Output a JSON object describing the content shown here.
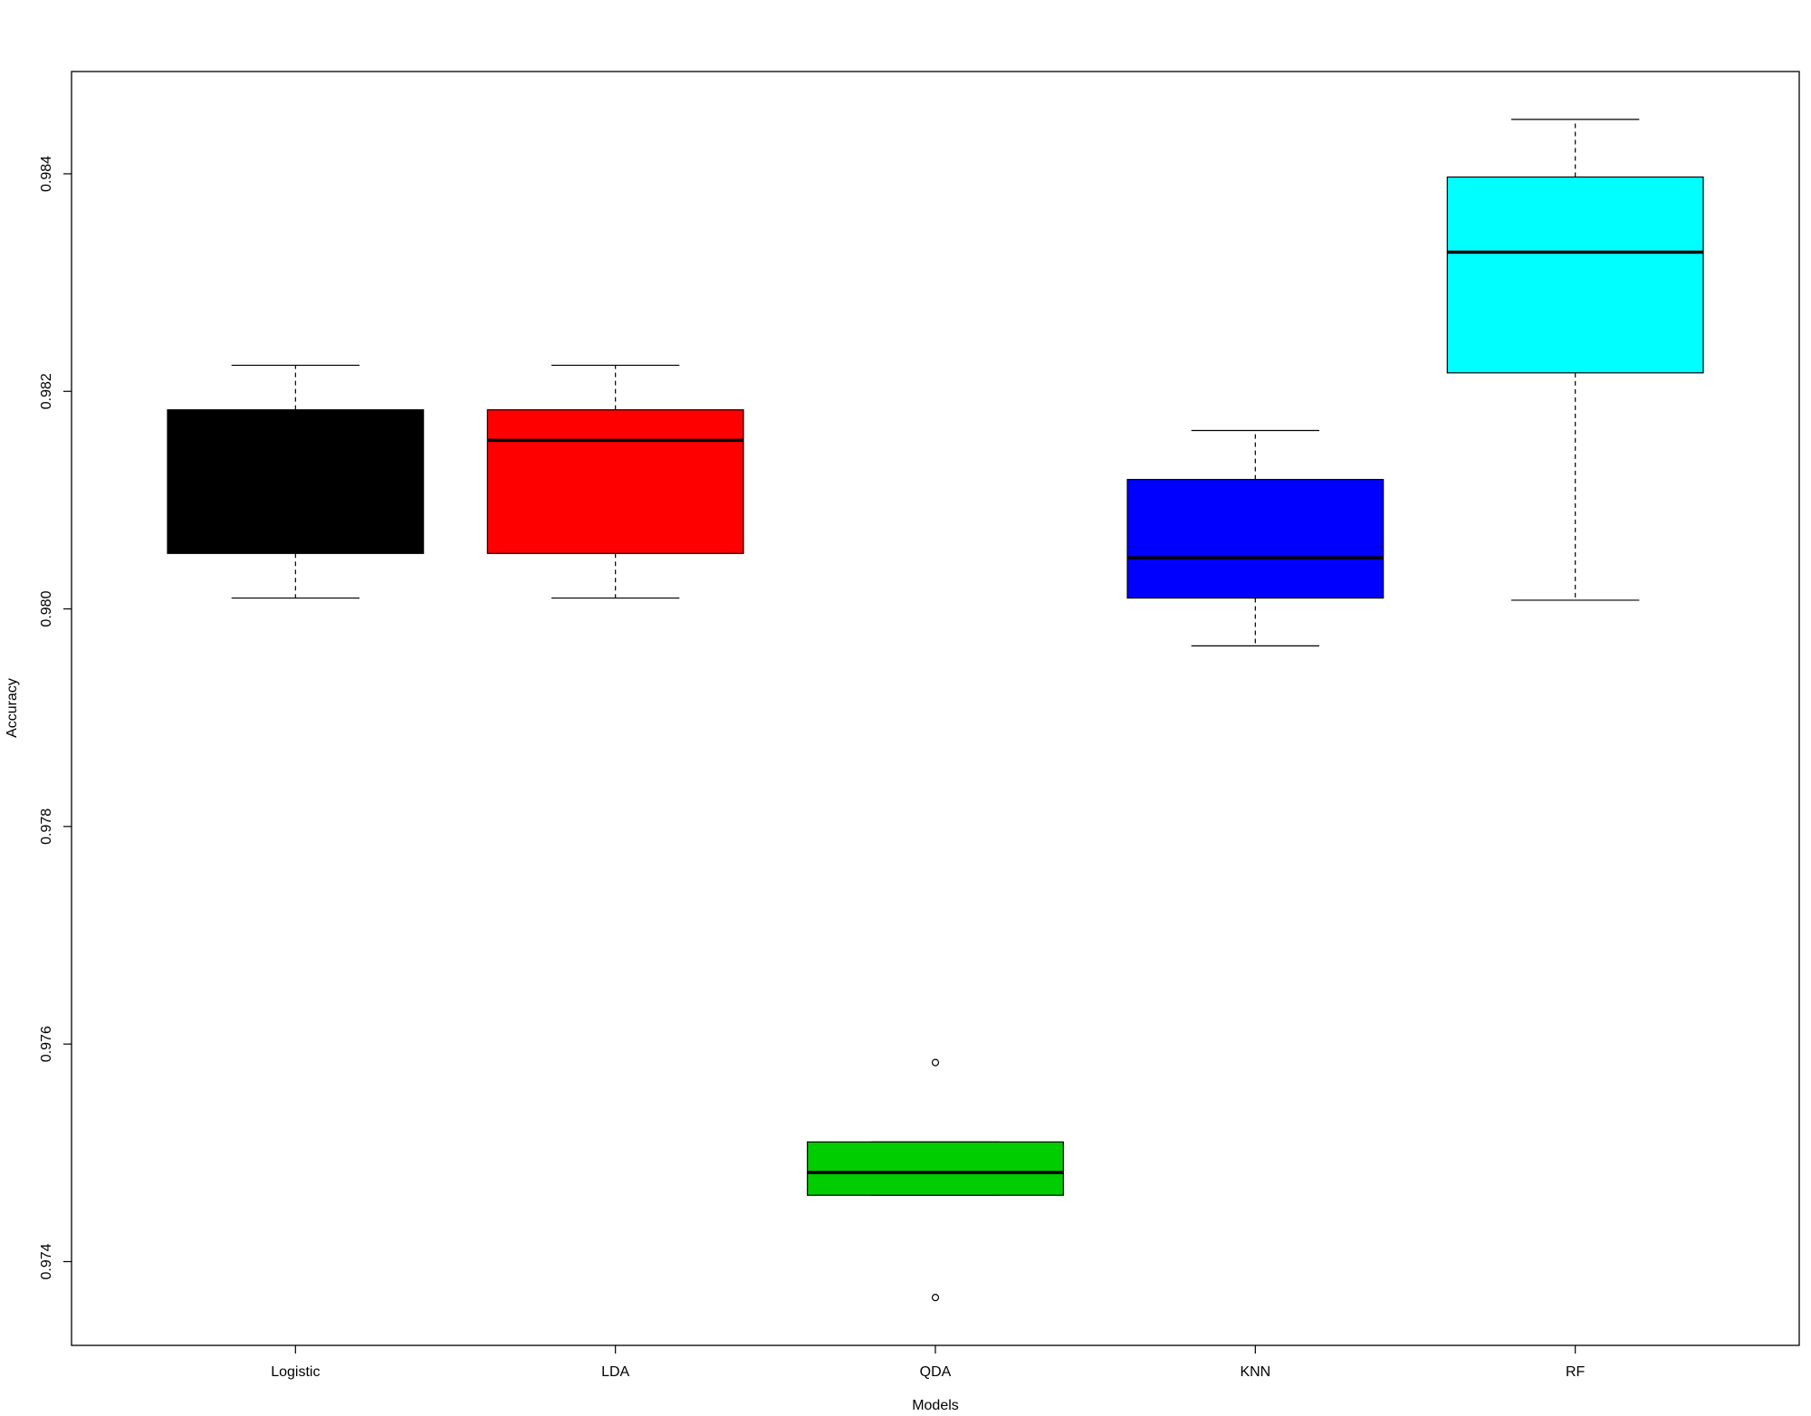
{
  "chart_data": {
    "type": "boxplot",
    "x_label": "Models",
    "y_label": "Accuracy",
    "categories": [
      "Logistic",
      "LDA",
      "QDA",
      "KNN",
      "RF"
    ],
    "colors": [
      "#000000",
      "#ff0000",
      "#00cd00",
      "#0000ff",
      "#00ffff"
    ],
    "boxes": [
      {
        "min": 0.9801,
        "q1": 0.98051,
        "median": 0.98155,
        "q3": 0.98183,
        "max": 0.98224,
        "outliers": []
      },
      {
        "min": 0.9801,
        "q1": 0.98051,
        "median": 0.98155,
        "q3": 0.98183,
        "max": 0.98224,
        "outliers": []
      },
      {
        "min": 0.97461,
        "q1": 0.97461,
        "median": 0.97482,
        "q3": 0.9751,
        "max": 0.9751,
        "outliers": [
          0.97583,
          0.97367
        ]
      },
      {
        "min": 0.97966,
        "q1": 0.9801,
        "median": 0.98047,
        "q3": 0.98119,
        "max": 0.98164,
        "outliers": []
      },
      {
        "min": 0.98008,
        "q1": 0.98217,
        "median": 0.98328,
        "q3": 0.98397,
        "max": 0.9845,
        "outliers": []
      }
    ],
    "ylim": [
      0.97323,
      0.98494
    ],
    "yticks": [
      0.974,
      0.976,
      0.978,
      {
        "value": 0.98,
        "label": "0.980"
      },
      0.982,
      0.984
    ]
  }
}
